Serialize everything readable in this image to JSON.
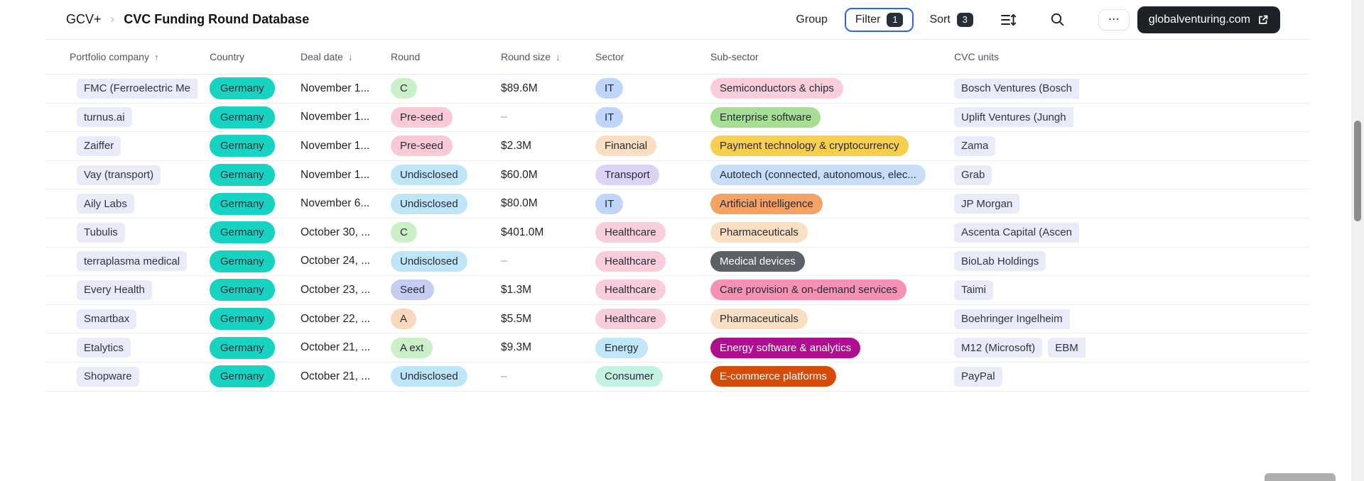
{
  "header": {
    "breadcrumb_root": "GCV+",
    "breadcrumb_sep": "›",
    "title": "CVC Funding Round Database",
    "toolbar": {
      "group_label": "Group",
      "filter_label": "Filter",
      "filter_count": "1",
      "sort_label": "Sort",
      "sort_count": "3",
      "more_label": "⋯",
      "site_link_label": "globalventuring.com"
    }
  },
  "colors": {
    "accent_blue": "#2e62ef",
    "badge_bg": "#272e38",
    "dark_button_bg": "#1e2126",
    "country_teal": "#17d3c1",
    "neutral_pill": "#e9ebf8"
  },
  "table": {
    "columns": [
      {
        "label": "Portfolio company",
        "arrow": "↑"
      },
      {
        "label": "Country",
        "arrow": ""
      },
      {
        "label": "Deal date",
        "arrow": "↓"
      },
      {
        "label": "Round",
        "arrow": ""
      },
      {
        "label": "Round size",
        "arrow": "↓"
      },
      {
        "label": "Sector",
        "arrow": ""
      },
      {
        "label": "Sub-sector",
        "arrow": ""
      },
      {
        "label": "CVC units",
        "arrow": ""
      }
    ],
    "rows": [
      {
        "company": {
          "label": "FMC (Ferroelectric Me",
          "cut": true
        },
        "country": {
          "label": "Germany",
          "bg": "#17d3c1"
        },
        "deal_date": "November 1...",
        "round": {
          "label": "C",
          "bg": "#cbefc6"
        },
        "round_size": "$89.6M",
        "sector": {
          "label": "IT",
          "bg": "#bfd5f9"
        },
        "sub_sector": {
          "label": "Semiconductors & chips",
          "bg": "#facdda"
        },
        "cvc_units": [
          {
            "label": "Bosch Ventures (Bosch",
            "cut": true
          }
        ]
      },
      {
        "company": {
          "label": "turnus.ai"
        },
        "country": {
          "label": "Germany",
          "bg": "#17d3c1"
        },
        "deal_date": "November 1...",
        "round": {
          "label": "Pre-seed",
          "bg": "#f9cad6"
        },
        "round_size": "–",
        "sector": {
          "label": "IT",
          "bg": "#bfd5f9"
        },
        "sub_sector": {
          "label": "Enterprise software",
          "bg": "#a6de93"
        },
        "cvc_units": [
          {
            "label": "Uplift Ventures (Jungh",
            "cut": true
          }
        ]
      },
      {
        "company": {
          "label": "Zaiffer"
        },
        "country": {
          "label": "Germany",
          "bg": "#17d3c1"
        },
        "deal_date": "November 1...",
        "round": {
          "label": "Pre-seed",
          "bg": "#f9cad6"
        },
        "round_size": "$2.3M",
        "sector": {
          "label": "Financial",
          "bg": "#fbdfc2"
        },
        "sub_sector": {
          "label": "Payment technology & cryptocurrency",
          "bg": "#f8ce4d"
        },
        "cvc_units": [
          {
            "label": "Zama"
          }
        ]
      },
      {
        "company": {
          "label": "Vay (transport)"
        },
        "country": {
          "label": "Germany",
          "bg": "#17d3c1"
        },
        "deal_date": "November 1...",
        "round": {
          "label": "Undisclosed",
          "bg": "#bfe6f8"
        },
        "round_size": "$60.0M",
        "sector": {
          "label": "Transport",
          "bg": "#ddd3f7"
        },
        "sub_sector": {
          "label": "Autotech (connected, autonomous, elec...",
          "bg": "#c8ddf8"
        },
        "cvc_units": [
          {
            "label": "Grab"
          }
        ]
      },
      {
        "company": {
          "label": "Aily Labs"
        },
        "country": {
          "label": "Germany",
          "bg": "#17d3c1"
        },
        "deal_date": "November 6...",
        "round": {
          "label": "Undisclosed",
          "bg": "#bfe6f8"
        },
        "round_size": "$80.0M",
        "sector": {
          "label": "IT",
          "bg": "#bfd5f9"
        },
        "sub_sector": {
          "label": "Artificial intelligence",
          "bg": "#f5a264"
        },
        "cvc_units": [
          {
            "label": "JP Morgan"
          }
        ]
      },
      {
        "company": {
          "label": "Tubulis"
        },
        "country": {
          "label": "Germany",
          "bg": "#17d3c1"
        },
        "deal_date": "October 30, ...",
        "round": {
          "label": "C",
          "bg": "#cbefc6"
        },
        "round_size": "$401.0M",
        "sector": {
          "label": "Healthcare",
          "bg": "#facdda"
        },
        "sub_sector": {
          "label": "Pharmaceuticals",
          "bg": "#fbdfc2"
        },
        "cvc_units": [
          {
            "label": "Ascenta Capital (Ascen",
            "cut": true
          }
        ]
      },
      {
        "company": {
          "label": "terraplasma medical"
        },
        "country": {
          "label": "Germany",
          "bg": "#17d3c1"
        },
        "deal_date": "October 24, ...",
        "round": {
          "label": "Undisclosed",
          "bg": "#bfe6f8"
        },
        "round_size": "–",
        "sector": {
          "label": "Healthcare",
          "bg": "#facdda"
        },
        "sub_sector": {
          "label": "Medical devices",
          "bg": "#5c6167",
          "fg": "#ffffff"
        },
        "cvc_units": [
          {
            "label": "BioLab Holdings"
          }
        ]
      },
      {
        "company": {
          "label": "Every Health"
        },
        "country": {
          "label": "Germany",
          "bg": "#17d3c1"
        },
        "deal_date": "October 23, ...",
        "round": {
          "label": "Seed",
          "bg": "#c5cdf3"
        },
        "round_size": "$1.3M",
        "sector": {
          "label": "Healthcare",
          "bg": "#facdda"
        },
        "sub_sector": {
          "label": "Care provision & on-demand services",
          "bg": "#f791b3"
        },
        "cvc_units": [
          {
            "label": "Taimi"
          }
        ]
      },
      {
        "company": {
          "label": "Smartbax"
        },
        "country": {
          "label": "Germany",
          "bg": "#17d3c1"
        },
        "deal_date": "October 22, ...",
        "round": {
          "label": "A",
          "bg": "#fad8bb"
        },
        "round_size": "$5.5M",
        "sector": {
          "label": "Healthcare",
          "bg": "#facdda"
        },
        "sub_sector": {
          "label": "Pharmaceuticals",
          "bg": "#fbdfc2"
        },
        "cvc_units": [
          {
            "label": "Boehringer Ingelheim",
            "cut": true
          }
        ]
      },
      {
        "company": {
          "label": "Etalytics"
        },
        "country": {
          "label": "Germany",
          "bg": "#17d3c1"
        },
        "deal_date": "October 21, ...",
        "round": {
          "label": "A ext",
          "bg": "#cbefc6"
        },
        "round_size": "$9.3M",
        "sector": {
          "label": "Energy",
          "bg": "#c0e6f8"
        },
        "sub_sector": {
          "label": "Energy software & analytics",
          "bg": "#af0f8e",
          "fg": "#ffffff"
        },
        "cvc_units": [
          {
            "label": "M12 (Microsoft)"
          },
          {
            "label": "EBM",
            "cut": true
          }
        ]
      },
      {
        "company": {
          "label": "Shopware"
        },
        "country": {
          "label": "Germany",
          "bg": "#17d3c1"
        },
        "deal_date": "October 21, ...",
        "round": {
          "label": "Undisclosed",
          "bg": "#bfe6f8"
        },
        "round_size": "–",
        "sector": {
          "label": "Consumer",
          "bg": "#c3f2e3"
        },
        "sub_sector": {
          "label": "E-commerce platforms",
          "bg": "#d74b0a",
          "fg": "#ffffff"
        },
        "cvc_units": [
          {
            "label": "PayPal"
          }
        ]
      }
    ]
  }
}
